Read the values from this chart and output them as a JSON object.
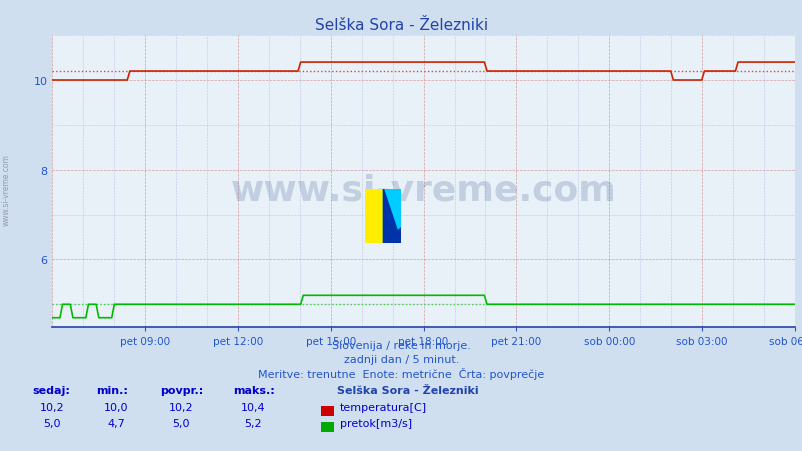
{
  "title": "Selška Sora - Železniki",
  "bg_color": "#d0dff0",
  "plot_bg_color": "#e8f0f8",
  "title_color": "#2244aa",
  "grid_color_major": "#cc8888",
  "grid_color_minor": "#9999cc",
  "xlabel_color": "#2255cc",
  "ylabel_color": "#2255cc",
  "watermark_text": "www.si-vreme.com",
  "watermark_color": "#1a3a7a",
  "subtitle1": "Slovenija / reke in morje.",
  "subtitle2": "zadnji dan / 5 minut.",
  "subtitle3": "Meritve: trenutne  Enote: metrične  Črta: povprečje",
  "subtitle_color": "#2255cc",
  "legend_title": "Selška Sora - Železniki",
  "legend_color": "#2244aa",
  "legend_label1": "temperatura[C]",
  "legend_label2": "pretok[m3/s]",
  "legend_color1": "#cc0000",
  "legend_color2": "#00aa00",
  "table_color": "#0000cc",
  "table_header": [
    "sedaj:",
    "min.:",
    "povpr.:",
    "maks.:"
  ],
  "table_row1": [
    "10,2",
    "10,0",
    "10,2",
    "10,4"
  ],
  "table_row2": [
    "5,0",
    "4,7",
    "5,0",
    "5,2"
  ],
  "xticklabels": [
    "pet 09:00",
    "pet 12:00",
    "pet 15:00",
    "pet 18:00",
    "pet 21:00",
    "sob 00:00",
    "sob 03:00",
    "sob 06:00"
  ],
  "ylim": [
    4.5,
    11.0
  ],
  "yticks": [
    6,
    8,
    10
  ],
  "temp_avg": 10.2,
  "flow_avg": 5.0,
  "n_points": 288,
  "temp_color": "#cc2200",
  "flow_color": "#00bb00",
  "avg_line_color_temp": "#dd4444",
  "avg_line_color_flow": "#44cc44",
  "sidewatermark": "www.si-vreme.com"
}
